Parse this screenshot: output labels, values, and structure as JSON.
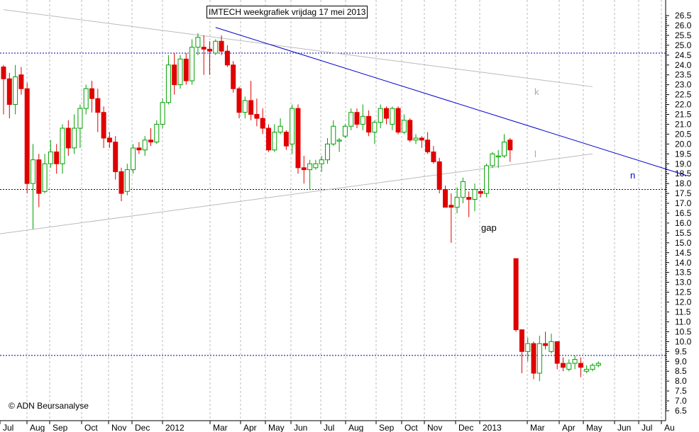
{
  "title": "IMTECH weekgrafiek vrijdag 17 mei 2013",
  "copyright": "© ADN Beursanalyse",
  "annotations": {
    "gap": "gap",
    "k": "k",
    "l": "l",
    "n": "n"
  },
  "colors": {
    "up": "#00a000",
    "down": "#e00000",
    "trend": "#0000cc",
    "support": "#0000aa",
    "channel": "#bbbbbb",
    "grid": "#bbbbbb"
  },
  "chart_data": {
    "type": "candlestick",
    "title": "IMTECH weekgrafiek vrijdag 17 mei 2013",
    "ylim": [
      6.5,
      26.8
    ],
    "y_ticks": [
      6.5,
      7.0,
      7.5,
      8.0,
      8.5,
      9.0,
      9.5,
      10.0,
      10.5,
      11.0,
      11.5,
      12.0,
      12.5,
      13.0,
      13.5,
      14.0,
      14.5,
      15.0,
      15.5,
      16.0,
      16.5,
      17.0,
      17.5,
      18.0,
      18.5,
      19.0,
      19.5,
      20.0,
      20.5,
      21.0,
      21.5,
      22.0,
      22.5,
      23.0,
      23.5,
      24.0,
      24.5,
      25.0,
      25.5,
      26.0,
      26.5
    ],
    "x_labels": [
      "Jul",
      "Aug",
      "Sep",
      "Oct",
      "Nov",
      "Dec",
      "2012",
      "Mar",
      "Apr",
      "May",
      "Jun",
      "Jul",
      "Aug",
      "Sep",
      "Oct",
      "Nov",
      "Dec",
      "2013",
      "Mar",
      "Apr",
      "May",
      "Jun",
      "Jul",
      "Au"
    ],
    "horizontal_lines": [
      24.6,
      17.7,
      9.3
    ],
    "candles": [
      {
        "o": 23.9,
        "h": 24.0,
        "l": 21.5,
        "c": 23.3
      },
      {
        "o": 23.3,
        "h": 23.6,
        "l": 21.3,
        "c": 22.0
      },
      {
        "o": 22.0,
        "h": 24.0,
        "l": 21.5,
        "c": 23.4
      },
      {
        "o": 23.5,
        "h": 23.9,
        "l": 22.5,
        "c": 22.8
      },
      {
        "o": 22.8,
        "h": 23.1,
        "l": 17.5,
        "c": 18.0
      },
      {
        "o": 18.0,
        "h": 20.0,
        "l": 15.7,
        "c": 19.2
      },
      {
        "o": 19.2,
        "h": 19.5,
        "l": 16.8,
        "c": 17.5
      },
      {
        "o": 17.6,
        "h": 19.5,
        "l": 17.5,
        "c": 19.0
      },
      {
        "o": 19.0,
        "h": 20.2,
        "l": 18.8,
        "c": 19.6
      },
      {
        "o": 19.6,
        "h": 20.0,
        "l": 18.5,
        "c": 19.0
      },
      {
        "o": 19.0,
        "h": 21.0,
        "l": 18.5,
        "c": 20.8
      },
      {
        "o": 20.8,
        "h": 21.2,
        "l": 19.4,
        "c": 19.8
      },
      {
        "o": 19.8,
        "h": 21.5,
        "l": 19.5,
        "c": 20.8
      },
      {
        "o": 20.8,
        "h": 22.0,
        "l": 19.8,
        "c": 21.8
      },
      {
        "o": 21.8,
        "h": 23.0,
        "l": 21.5,
        "c": 22.8
      },
      {
        "o": 22.8,
        "h": 23.2,
        "l": 21.6,
        "c": 22.3
      },
      {
        "o": 22.3,
        "h": 22.8,
        "l": 20.6,
        "c": 21.6
      },
      {
        "o": 21.6,
        "h": 21.9,
        "l": 19.8,
        "c": 20.3
      },
      {
        "o": 20.3,
        "h": 20.6,
        "l": 19.8,
        "c": 20.1
      },
      {
        "o": 20.1,
        "h": 20.4,
        "l": 18.2,
        "c": 18.6
      },
      {
        "o": 18.6,
        "h": 18.8,
        "l": 17.1,
        "c": 17.5
      },
      {
        "o": 17.6,
        "h": 19.0,
        "l": 17.4,
        "c": 18.7
      },
      {
        "o": 18.7,
        "h": 20.0,
        "l": 18.5,
        "c": 19.8
      },
      {
        "o": 19.8,
        "h": 20.1,
        "l": 19.5,
        "c": 19.7
      },
      {
        "o": 19.7,
        "h": 20.4,
        "l": 19.4,
        "c": 20.2
      },
      {
        "o": 20.2,
        "h": 20.8,
        "l": 19.9,
        "c": 20.1
      },
      {
        "o": 20.1,
        "h": 21.2,
        "l": 20.0,
        "c": 21.0
      },
      {
        "o": 21.0,
        "h": 22.3,
        "l": 20.8,
        "c": 22.1
      },
      {
        "o": 22.1,
        "h": 24.5,
        "l": 22.0,
        "c": 24.0
      },
      {
        "o": 24.0,
        "h": 24.6,
        "l": 22.5,
        "c": 23.0
      },
      {
        "o": 23.0,
        "h": 24.5,
        "l": 22.8,
        "c": 24.3
      },
      {
        "o": 24.3,
        "h": 24.6,
        "l": 23.0,
        "c": 23.2
      },
      {
        "o": 23.2,
        "h": 25.3,
        "l": 23.0,
        "c": 24.9
      },
      {
        "o": 24.9,
        "h": 25.6,
        "l": 24.5,
        "c": 25.4
      },
      {
        "o": 24.9,
        "h": 25.5,
        "l": 23.5,
        "c": 24.8
      },
      {
        "o": 24.8,
        "h": 25.2,
        "l": 23.5,
        "c": 24.7
      },
      {
        "o": 24.6,
        "h": 25.3,
        "l": 24.5,
        "c": 25.2
      },
      {
        "o": 25.2,
        "h": 25.5,
        "l": 24.5,
        "c": 24.7
      },
      {
        "o": 24.7,
        "h": 25.0,
        "l": 23.9,
        "c": 24.0
      },
      {
        "o": 24.0,
        "h": 24.2,
        "l": 22.6,
        "c": 22.8
      },
      {
        "o": 22.8,
        "h": 22.9,
        "l": 21.3,
        "c": 21.6
      },
      {
        "o": 21.6,
        "h": 22.4,
        "l": 21.3,
        "c": 22.2
      },
      {
        "o": 22.2,
        "h": 23.2,
        "l": 21.2,
        "c": 21.5
      },
      {
        "o": 21.5,
        "h": 22.3,
        "l": 20.9,
        "c": 21.3
      },
      {
        "o": 21.3,
        "h": 21.8,
        "l": 20.5,
        "c": 20.8
      },
      {
        "o": 20.8,
        "h": 21.0,
        "l": 19.6,
        "c": 19.7
      },
      {
        "o": 19.7,
        "h": 21.0,
        "l": 19.6,
        "c": 20.6
      },
      {
        "o": 20.6,
        "h": 21.3,
        "l": 20.5,
        "c": 20.9
      },
      {
        "o": 20.6,
        "h": 20.7,
        "l": 19.7,
        "c": 19.9
      },
      {
        "o": 20.0,
        "h": 22.0,
        "l": 19.5,
        "c": 21.8
      },
      {
        "o": 21.8,
        "h": 22.0,
        "l": 18.5,
        "c": 18.8
      },
      {
        "o": 18.8,
        "h": 19.4,
        "l": 18.0,
        "c": 18.7
      },
      {
        "o": 18.7,
        "h": 19.2,
        "l": 17.7,
        "c": 19.0
      },
      {
        "o": 18.8,
        "h": 19.2,
        "l": 18.7,
        "c": 19.0
      },
      {
        "o": 19.0,
        "h": 19.4,
        "l": 18.6,
        "c": 19.2
      },
      {
        "o": 19.2,
        "h": 20.3,
        "l": 19.0,
        "c": 20.0
      },
      {
        "o": 20.0,
        "h": 21.2,
        "l": 19.9,
        "c": 20.9
      },
      {
        "o": 20.2,
        "h": 20.3,
        "l": 19.6,
        "c": 20.2
      },
      {
        "o": 20.4,
        "h": 21.0,
        "l": 20.3,
        "c": 20.9
      },
      {
        "o": 20.9,
        "h": 21.8,
        "l": 20.7,
        "c": 21.6
      },
      {
        "o": 21.6,
        "h": 21.8,
        "l": 20.8,
        "c": 21.0
      },
      {
        "o": 21.0,
        "h": 22.0,
        "l": 20.7,
        "c": 21.4
      },
      {
        "o": 21.4,
        "h": 21.7,
        "l": 20.4,
        "c": 20.6
      },
      {
        "o": 20.6,
        "h": 21.2,
        "l": 20.0,
        "c": 21.1
      },
      {
        "o": 21.1,
        "h": 22.0,
        "l": 20.8,
        "c": 21.8
      },
      {
        "o": 21.8,
        "h": 21.9,
        "l": 21.0,
        "c": 21.3
      },
      {
        "o": 21.0,
        "h": 21.9,
        "l": 20.7,
        "c": 21.8
      },
      {
        "o": 21.8,
        "h": 21.9,
        "l": 20.5,
        "c": 20.6
      },
      {
        "o": 20.6,
        "h": 21.5,
        "l": 20.5,
        "c": 21.2
      },
      {
        "o": 21.2,
        "h": 21.3,
        "l": 20.1,
        "c": 20.2
      },
      {
        "o": 20.2,
        "h": 20.5,
        "l": 20.0,
        "c": 20.3
      },
      {
        "o": 20.3,
        "h": 20.4,
        "l": 19.8,
        "c": 20.2
      },
      {
        "o": 20.2,
        "h": 20.6,
        "l": 19.5,
        "c": 19.6
      },
      {
        "o": 19.6,
        "h": 19.9,
        "l": 19.0,
        "c": 19.1
      },
      {
        "o": 19.1,
        "h": 19.3,
        "l": 17.5,
        "c": 17.7
      },
      {
        "o": 17.7,
        "h": 17.9,
        "l": 16.9,
        "c": 16.8
      },
      {
        "o": 16.9,
        "h": 17.5,
        "l": 15.0,
        "c": 16.8
      },
      {
        "o": 16.8,
        "h": 17.8,
        "l": 16.5,
        "c": 17.3
      },
      {
        "o": 17.3,
        "h": 18.3,
        "l": 17.0,
        "c": 18.1
      },
      {
        "o": 17.3,
        "h": 17.6,
        "l": 16.3,
        "c": 17.2
      },
      {
        "o": 17.2,
        "h": 18.0,
        "l": 16.6,
        "c": 17.7
      },
      {
        "o": 17.6,
        "h": 17.7,
        "l": 17.3,
        "c": 17.5
      },
      {
        "o": 17.5,
        "h": 19.0,
        "l": 17.3,
        "c": 18.9
      },
      {
        "o": 18.9,
        "h": 19.6,
        "l": 18.8,
        "c": 19.5
      },
      {
        "o": 19.4,
        "h": 19.7,
        "l": 18.8,
        "c": 19.4
      },
      {
        "o": 19.4,
        "h": 20.5,
        "l": 19.3,
        "c": 20.1
      },
      {
        "o": 20.2,
        "h": 20.3,
        "l": 19.1,
        "c": 19.7
      },
      {
        "o": 14.2,
        "h": 14.2,
        "l": 10.5,
        "c": 10.6
      },
      {
        "o": 10.6,
        "h": 10.6,
        "l": 8.4,
        "c": 9.5
      },
      {
        "o": 9.5,
        "h": 10.2,
        "l": 9.0,
        "c": 9.9
      },
      {
        "o": 9.9,
        "h": 10.0,
        "l": 8.1,
        "c": 8.4
      },
      {
        "o": 8.4,
        "h": 10.3,
        "l": 8.0,
        "c": 9.9
      },
      {
        "o": 9.9,
        "h": 10.5,
        "l": 9.6,
        "c": 9.8
      },
      {
        "o": 9.5,
        "h": 10.4,
        "l": 9.4,
        "c": 10.0
      },
      {
        "o": 10.0,
        "h": 10.0,
        "l": 8.6,
        "c": 8.9
      },
      {
        "o": 8.9,
        "h": 9.2,
        "l": 8.5,
        "c": 8.7
      },
      {
        "o": 8.6,
        "h": 9.1,
        "l": 8.5,
        "c": 8.9
      },
      {
        "o": 8.9,
        "h": 9.3,
        "l": 8.6,
        "c": 9.1
      },
      {
        "o": 8.9,
        "h": 9.2,
        "l": 8.2,
        "c": 8.7
      },
      {
        "o": 8.5,
        "h": 8.8,
        "l": 8.4,
        "c": 8.6
      },
      {
        "o": 8.6,
        "h": 8.9,
        "l": 8.5,
        "c": 8.8
      },
      {
        "o": 8.8,
        "h": 9.0,
        "l": 8.7,
        "c": 8.9
      }
    ],
    "trendlines": [
      {
        "name": "k",
        "from": [
          0,
          26.8
        ],
        "to": [
          100,
          22.9
        ]
      },
      {
        "name": "n",
        "from": [
          36,
          25.9
        ],
        "to": [
          116,
          18.4
        ]
      },
      {
        "name": "l",
        "from": [
          -7,
          15.2
        ],
        "to": [
          100,
          19.5
        ]
      }
    ]
  }
}
